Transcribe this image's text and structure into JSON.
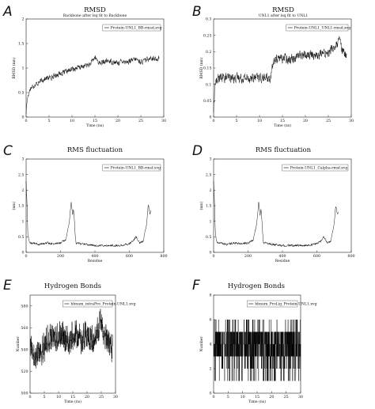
{
  "chart_data": [
    {
      "panel": "A",
      "type": "line",
      "title": "RMSD",
      "subtitle": "Backbone after lsq fit to Backbone",
      "xlabel": "Time (ns)",
      "ylabel": "RMSD (nm)",
      "xlim": [
        0,
        30
      ],
      "ylim": [
        0,
        2
      ],
      "xticks": [
        0,
        5,
        10,
        15,
        20,
        25,
        30
      ],
      "yticks": [
        0,
        0.5,
        1,
        1.5,
        2
      ],
      "legend": "Protein-UNL1_BB-rmsd.xvg",
      "legend_position": "top-right",
      "color": "#000000",
      "series": [
        {
          "x": [
            0,
            0.3,
            1,
            2,
            3,
            4,
            5,
            6,
            7,
            8,
            9,
            10,
            11,
            12,
            13,
            14,
            15,
            16,
            17,
            18,
            19,
            20,
            21,
            22,
            23,
            24,
            25,
            26,
            27,
            28,
            29
          ],
          "y": [
            0.08,
            0.42,
            0.6,
            0.66,
            0.72,
            0.78,
            0.8,
            0.83,
            0.88,
            0.9,
            0.93,
            0.98,
            1.0,
            1.02,
            1.05,
            1.08,
            1.22,
            1.1,
            1.12,
            1.15,
            1.12,
            1.1,
            1.15,
            1.12,
            1.15,
            1.18,
            1.12,
            1.15,
            1.22,
            1.18,
            1.2
          ],
          "noise": 0.045
        }
      ]
    },
    {
      "panel": "B",
      "type": "line",
      "title": "RMSD",
      "subtitle": "UNL1 after lsq fit to UNL1",
      "xlabel": "Time (ns)",
      "ylabel": "RMSD (nm)",
      "xlim": [
        0,
        30
      ],
      "ylim": [
        0,
        0.3
      ],
      "xticks": [
        0,
        5,
        10,
        15,
        20,
        25,
        30
      ],
      "yticks": [
        0,
        0.05,
        0.1,
        0.15,
        0.2,
        0.25,
        0.3
      ],
      "legend": "Protein-UNL1_UNL1-rmsd.xvg",
      "legend_position": "top-right",
      "color": "#000000",
      "series": [
        {
          "x": [
            0,
            0.3,
            1,
            3,
            5,
            7,
            9,
            11,
            12.5,
            12.8,
            13,
            14,
            15,
            17,
            19,
            21,
            23,
            25,
            26,
            27,
            27.5,
            28,
            29
          ],
          "y": [
            0.02,
            0.1,
            0.12,
            0.12,
            0.12,
            0.12,
            0.12,
            0.12,
            0.12,
            0.15,
            0.17,
            0.18,
            0.18,
            0.18,
            0.19,
            0.19,
            0.19,
            0.2,
            0.21,
            0.22,
            0.24,
            0.2,
            0.19
          ],
          "noise": 0.012
        }
      ]
    },
    {
      "panel": "C",
      "type": "line",
      "title": "RMS fluctuation",
      "subtitle": "",
      "xlabel": "Residue",
      "ylabel": "(nm)",
      "xlim": [
        0,
        800
      ],
      "ylim": [
        0,
        3
      ],
      "xticks": [
        0,
        200,
        400,
        600,
        800
      ],
      "yticks": [
        0,
        0.5,
        1,
        1.5,
        2,
        2.5,
        3
      ],
      "legend": "Protein-UNL1_BB-rmsf.xvg",
      "legend_position": "top-right",
      "color": "#000000",
      "series": [
        {
          "x": [
            0,
            5,
            10,
            20,
            40,
            80,
            120,
            160,
            200,
            230,
            250,
            262,
            270,
            275,
            280,
            285,
            290,
            300,
            350,
            400,
            450,
            500,
            550,
            600,
            620,
            640,
            660,
            680,
            700,
            710,
            720,
            725
          ],
          "y": [
            2.3,
            1.6,
            0.6,
            0.3,
            0.3,
            0.25,
            0.3,
            0.28,
            0.3,
            0.4,
            0.9,
            1.65,
            1.2,
            1.4,
            1.1,
            0.6,
            0.3,
            0.3,
            0.25,
            0.22,
            0.22,
            0.22,
            0.22,
            0.28,
            0.35,
            0.5,
            0.3,
            0.35,
            0.9,
            1.55,
            1.2,
            1.35
          ],
          "noise": 0.03
        }
      ]
    },
    {
      "panel": "D",
      "type": "line",
      "title": "RMS fluctuation",
      "subtitle": "",
      "xlabel": "Residue",
      "ylabel": "(nm)",
      "xlim": [
        0,
        800
      ],
      "ylim": [
        0,
        3
      ],
      "xticks": [
        0,
        200,
        400,
        600,
        800
      ],
      "yticks": [
        0,
        0.5,
        1,
        1.5,
        2,
        2.5,
        3
      ],
      "legend": "Protein-UNL1_Calpha-rmsf.xvg",
      "legend_position": "top-right",
      "color": "#000000",
      "series": [
        {
          "x": [
            0,
            5,
            10,
            20,
            40,
            80,
            120,
            160,
            200,
            230,
            250,
            262,
            270,
            275,
            280,
            285,
            290,
            300,
            350,
            400,
            450,
            500,
            550,
            600,
            620,
            640,
            660,
            680,
            700,
            710,
            720,
            725
          ],
          "y": [
            2.3,
            1.6,
            0.6,
            0.3,
            0.3,
            0.25,
            0.3,
            0.28,
            0.3,
            0.4,
            0.9,
            1.6,
            1.2,
            1.4,
            1.1,
            0.6,
            0.3,
            0.3,
            0.25,
            0.22,
            0.22,
            0.22,
            0.22,
            0.28,
            0.35,
            0.5,
            0.3,
            0.35,
            0.9,
            1.5,
            1.2,
            1.3
          ],
          "noise": 0.03
        }
      ]
    },
    {
      "panel": "E",
      "type": "line",
      "title": "Hydrogen Bonds",
      "subtitle": "",
      "xlabel": "Time (ns)",
      "ylabel": "Number",
      "xlim": [
        0,
        30
      ],
      "ylim": [
        500,
        590
      ],
      "xticks": [
        0,
        5,
        10,
        15,
        20,
        25,
        30
      ],
      "yticks": [
        500,
        520,
        540,
        560,
        580
      ],
      "legend": "hbnum_intraPro_Protein-UNL1.xvg",
      "legend_position": "top-right",
      "color": "#000000",
      "series": [
        {
          "x": [
            0,
            1,
            2,
            3,
            4,
            5,
            6,
            7,
            8,
            9,
            10,
            11,
            12,
            13,
            14,
            15,
            16,
            17,
            18,
            19,
            20,
            21,
            22,
            23,
            24,
            25,
            26,
            27,
            28,
            29
          ],
          "y": [
            545,
            538,
            535,
            538,
            542,
            545,
            550,
            552,
            548,
            550,
            553,
            552,
            555,
            550,
            548,
            552,
            555,
            550,
            548,
            552,
            553,
            550,
            548,
            555,
            558,
            560,
            552,
            548,
            545,
            542
          ],
          "noise": 11
        }
      ]
    },
    {
      "panel": "F",
      "type": "line",
      "title": "Hydrogen Bonds",
      "subtitle": "",
      "xlabel": "Time (ns)",
      "ylabel": "Number",
      "xlim": [
        0,
        30
      ],
      "ylim": [
        0,
        8
      ],
      "xticks": [
        0,
        5,
        10,
        15,
        20,
        25,
        30
      ],
      "yticks": [
        0,
        2,
        4,
        6,
        8
      ],
      "legend": "hbnum_ProLig_Protein-UNL1.xvg",
      "legend_position": "top-right",
      "color": "#000000",
      "series": [
        {
          "x": [
            0,
            30
          ],
          "y": [
            4,
            4
          ],
          "levels": [
            1,
            2,
            3,
            4,
            5,
            6,
            7
          ],
          "discrete": true
        }
      ]
    }
  ]
}
